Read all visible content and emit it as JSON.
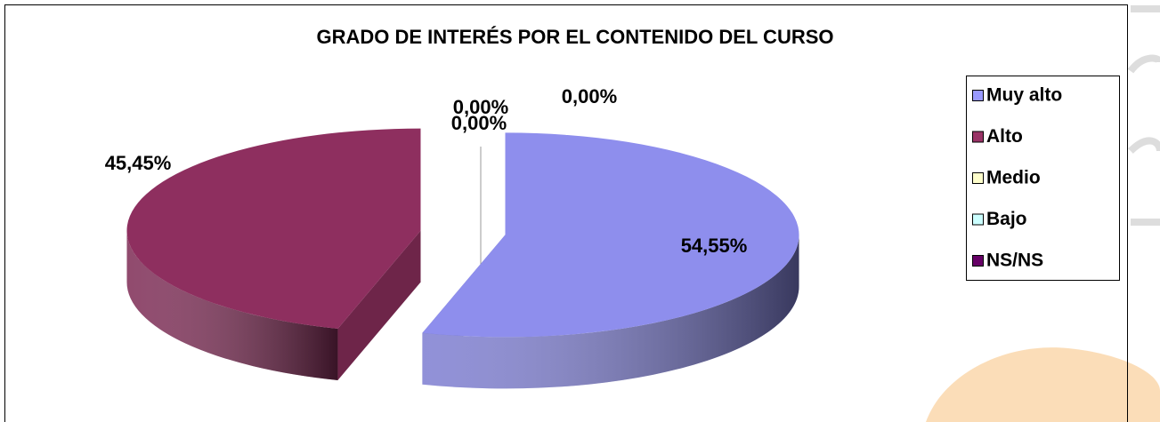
{
  "chart_data": {
    "type": "pie",
    "title": "GRADO DE INTERÉS POR EL CONTENIDO DEL CURSO",
    "categories": [
      "Muy alto",
      "Alto",
      "Medio",
      "Bajo",
      "NS/NS"
    ],
    "values": [
      54.55,
      45.45,
      0,
      0,
      0
    ],
    "value_labels": [
      "54,55%",
      "45,45%",
      "0,00%",
      "0,00%",
      "0,00%"
    ],
    "colors": [
      "#9999ff",
      "#993366",
      "#ffffcc",
      "#ccffff",
      "#660066"
    ],
    "legend": "right"
  }
}
